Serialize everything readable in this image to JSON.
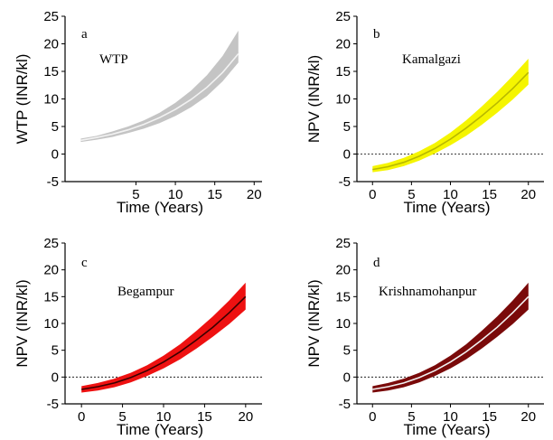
{
  "chart_data": [
    {
      "type": "area",
      "panel_letter": "a",
      "annotation": "WTP",
      "xlabel": "Time (Years)",
      "ylabel": "WTP (INR/kl)",
      "xlim": [
        -4,
        21
      ],
      "ylim": [
        -5,
        25
      ],
      "xticks": [
        "5",
        "10",
        "15",
        "20"
      ],
      "yticks": [
        "-5",
        "0",
        "5",
        "10",
        "15",
        "20",
        "25"
      ],
      "zero_line": false,
      "colors": {
        "band": "#c4c4c4",
        "line": "#f2f2f2",
        "axis": "#000000"
      },
      "x": [
        -2,
        0,
        2,
        4,
        6,
        8,
        10,
        12,
        14,
        16,
        18
      ],
      "series": [
        {
          "role": "central",
          "values": [
            2.5,
            3.0,
            3.6,
            4.4,
            5.4,
            6.6,
            8.1,
            9.9,
            12.1,
            14.8,
            18.2
          ]
        },
        {
          "role": "lower",
          "values": [
            2.2,
            2.6,
            3.1,
            3.8,
            4.6,
            5.6,
            6.9,
            8.5,
            10.5,
            13.2,
            16.6
          ]
        },
        {
          "role": "upper",
          "values": [
            2.8,
            3.3,
            4.1,
            5.0,
            6.1,
            7.5,
            9.3,
            11.5,
            14.3,
            17.8,
            22.4
          ]
        }
      ]
    },
    {
      "type": "area",
      "panel_letter": "b",
      "annotation": "Kamalgazi",
      "xlabel": "Time (Years)",
      "ylabel": "NPV (INR/kl)",
      "xlim": [
        -2,
        22
      ],
      "ylim": [
        -5,
        25
      ],
      "xticks": [
        "0",
        "5",
        "10",
        "15",
        "20"
      ],
      "yticks": [
        "-5",
        "0",
        "5",
        "10",
        "15",
        "20",
        "25"
      ],
      "zero_line": true,
      "colors": {
        "band": "#f5f500",
        "line": "#b8b800",
        "axis": "#000000"
      },
      "x": [
        0,
        2,
        4,
        6,
        8,
        10,
        12,
        14,
        16,
        18,
        20
      ],
      "series": [
        {
          "role": "central",
          "values": [
            -2.8,
            -2.3,
            -1.5,
            -0.4,
            1.0,
            2.7,
            4.7,
            6.9,
            9.3,
            11.9,
            14.8
          ]
        },
        {
          "role": "lower",
          "values": [
            -3.3,
            -2.9,
            -2.2,
            -1.2,
            0.1,
            1.6,
            3.3,
            5.3,
            7.5,
            9.9,
            12.6
          ]
        },
        {
          "role": "upper",
          "values": [
            -2.2,
            -1.6,
            -0.7,
            0.5,
            2.0,
            3.9,
            6.1,
            8.6,
            11.3,
            14.2,
            17.3
          ]
        }
      ]
    },
    {
      "type": "area",
      "panel_letter": "c",
      "annotation": "Begampur",
      "xlabel": "Time (Years)",
      "ylabel": "NPV (INR/kl)",
      "xlim": [
        -2,
        22
      ],
      "ylim": [
        -5,
        25
      ],
      "xticks": [
        "0",
        "5",
        "10",
        "15",
        "20"
      ],
      "yticks": [
        "-5",
        "0",
        "5",
        "10",
        "15",
        "20",
        "25"
      ],
      "zero_line": true,
      "colors": {
        "band": "#ee1111",
        "line": "#3a0000",
        "axis": "#000000"
      },
      "x": [
        0,
        2,
        4,
        6,
        8,
        10,
        12,
        14,
        16,
        18,
        20
      ],
      "series": [
        {
          "role": "central",
          "values": [
            -2.3,
            -1.8,
            -1.1,
            -0.1,
            1.2,
            2.8,
            4.7,
            6.9,
            9.3,
            12.0,
            15.0
          ]
        },
        {
          "role": "lower",
          "values": [
            -2.9,
            -2.5,
            -1.9,
            -1.0,
            0.2,
            1.6,
            3.3,
            5.3,
            7.5,
            9.9,
            12.6
          ]
        },
        {
          "role": "upper",
          "values": [
            -1.7,
            -1.1,
            -0.3,
            0.8,
            2.2,
            4.0,
            6.1,
            8.6,
            11.3,
            14.3,
            17.6
          ]
        }
      ]
    },
    {
      "type": "area",
      "panel_letter": "d",
      "annotation": "Krishnamohanpur",
      "xlabel": "Time (Years)",
      "ylabel": "NPV (INR/kl)",
      "xlim": [
        -2,
        22
      ],
      "ylim": [
        -5,
        25
      ],
      "xticks": [
        "0",
        "5",
        "10",
        "15",
        "20"
      ],
      "yticks": [
        "-5",
        "0",
        "5",
        "10",
        "15",
        "20",
        "25"
      ],
      "zero_line": true,
      "colors": {
        "band": "#7a0a0a",
        "line": "#f2f2f2",
        "axis": "#000000"
      },
      "x": [
        0,
        2,
        4,
        6,
        8,
        10,
        12,
        14,
        16,
        18,
        20
      ],
      "series": [
        {
          "role": "central",
          "values": [
            -2.3,
            -1.8,
            -1.1,
            -0.1,
            1.2,
            2.8,
            4.7,
            6.9,
            9.3,
            12.0,
            15.0
          ]
        },
        {
          "role": "lower",
          "values": [
            -2.9,
            -2.5,
            -1.9,
            -1.0,
            0.2,
            1.6,
            3.3,
            5.3,
            7.5,
            9.9,
            12.6
          ]
        },
        {
          "role": "upper",
          "values": [
            -1.7,
            -1.1,
            -0.3,
            0.8,
            2.2,
            4.0,
            6.1,
            8.6,
            11.3,
            14.3,
            17.6
          ]
        }
      ]
    }
  ]
}
